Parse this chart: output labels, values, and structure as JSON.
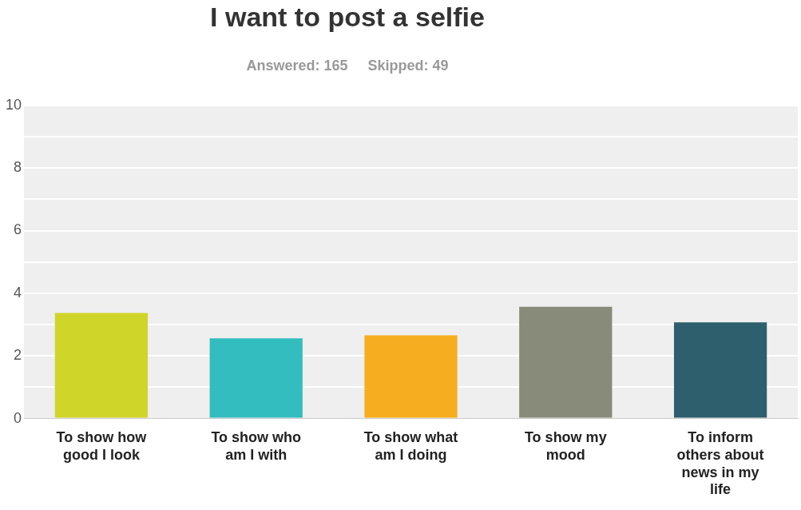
{
  "chart_data": {
    "type": "bar",
    "title": "I want to post a selfie",
    "subtitle": "Answered: 165     Skipped: 49",
    "categories": [
      "To show how good I look",
      "To show who am I with",
      "To show what am I doing",
      "To show my mood",
      "To inform others about news in my life"
    ],
    "values": [
      3.37,
      2.56,
      2.66,
      3.57,
      3.07
    ],
    "colors": [
      "#d0d52a",
      "#33bdbe",
      "#f6ae20",
      "#888a7a",
      "#2e5f6c"
    ],
    "ylim": [
      0,
      10
    ],
    "yticks": [
      0,
      {
        "value": 1,
        "label": null
      },
      2,
      {
        "value": 3,
        "label": null
      },
      4,
      {
        "value": 5,
        "label": null
      },
      6,
      {
        "value": 7,
        "label": null
      },
      8,
      {
        "value": 9,
        "label": null
      },
      10
    ],
    "grid": true,
    "legend": false
  }
}
